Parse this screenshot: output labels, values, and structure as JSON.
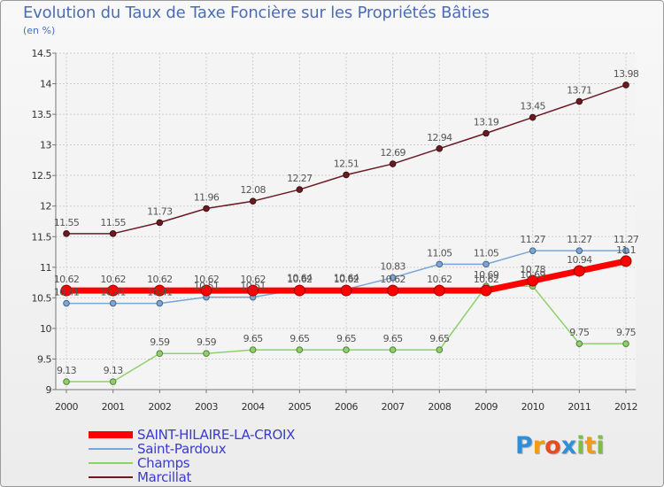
{
  "chart_data": {
    "type": "line",
    "title": "Evolution du Taux de Taxe Foncière sur les Propriétés Bâties",
    "subtitle": "(en %)",
    "xlabel": "",
    "ylabel": "",
    "x": [
      "2000",
      "2001",
      "2002",
      "2003",
      "2004",
      "2005",
      "2006",
      "2007",
      "2008",
      "2009",
      "2010",
      "2011",
      "2012"
    ],
    "ylim": [
      9,
      14.5
    ],
    "yticks": [
      "9",
      "9.5",
      "10",
      "10.5",
      "11",
      "11.5",
      "12",
      "12.5",
      "13",
      "13.5",
      "14",
      "14.5"
    ],
    "grid": true,
    "legend_position": "bottom-left",
    "series": [
      {
        "name": "Marcillat",
        "color": "#6b1a22",
        "values": [
          11.55,
          11.55,
          11.73,
          11.96,
          12.08,
          12.27,
          12.51,
          12.69,
          12.94,
          13.19,
          13.45,
          13.71,
          13.98
        ],
        "labels": [
          "11.55",
          "11.55",
          "11.73",
          "11.96",
          "12.08",
          "12.27",
          "12.51",
          "12.69",
          "12.94",
          "13.19",
          "13.45",
          "13.71",
          "13.98"
        ]
      },
      {
        "name": "Champs",
        "color": "#8ed16a",
        "values": [
          9.13,
          9.13,
          9.59,
          9.59,
          9.65,
          9.65,
          9.65,
          9.65,
          9.65,
          10.69,
          10.69,
          9.75,
          9.75
        ],
        "labels": [
          "9.13",
          "9.13",
          "9.59",
          "9.59",
          "9.65",
          "9.65",
          "9.65",
          "9.65",
          "9.65",
          "10.69",
          "10.69",
          "9.75",
          "9.75"
        ]
      },
      {
        "name": "Saint-Pardoux",
        "color": "#7aa6d6",
        "values": [
          10.41,
          10.41,
          10.41,
          10.51,
          10.51,
          10.64,
          10.64,
          10.83,
          11.05,
          11.05,
          11.27,
          11.27,
          11.27
        ],
        "labels": [
          "10.41",
          "10.41",
          "10.41",
          "10.51",
          "10.51",
          "10.64",
          "10.64",
          "10.83",
          "11.05",
          "11.05",
          "11.27",
          "11.27",
          "11.27"
        ]
      },
      {
        "name": "SAINT-HILAIRE-LA-CROIX",
        "color": "#ff0000",
        "values": [
          10.62,
          10.62,
          10.62,
          10.62,
          10.62,
          10.62,
          10.62,
          10.62,
          10.62,
          10.62,
          10.78,
          10.94,
          11.1
        ],
        "labels": [
          "10.62",
          "10.62",
          "10.62",
          "10.62",
          "10.62",
          "10.62",
          "10.62",
          "10.62",
          "10.62",
          "10.62",
          "10.78",
          "10.94",
          "11.1"
        ]
      }
    ],
    "legend_order": [
      "SAINT-HILAIRE-LA-CROIX",
      "Saint-Pardoux",
      "Champs",
      "Marcillat"
    ]
  },
  "logo": {
    "letters": [
      "P",
      "r",
      "o",
      "x",
      "i",
      "t",
      "i"
    ],
    "colors": [
      "#2f8fd8",
      "#f39c12",
      "#e84c1e",
      "#2f8fd8",
      "#7bc043",
      "#f39c12",
      "#7bc043"
    ]
  }
}
